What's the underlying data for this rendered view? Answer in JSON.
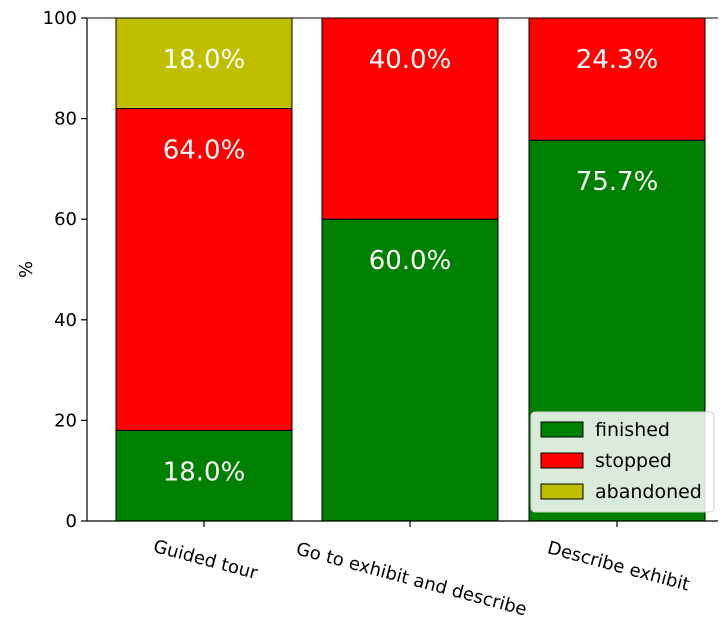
{
  "chart_data": {
    "type": "bar",
    "stacked": true,
    "categories": [
      "Guided tour",
      "Go to exhibit and describe",
      "Describe exhibit"
    ],
    "series": [
      {
        "name": "finished",
        "values": [
          18.0,
          60.0,
          75.7
        ],
        "color": "#008000"
      },
      {
        "name": "stopped",
        "values": [
          64.0,
          40.0,
          24.3
        ],
        "color": "#ff0000"
      },
      {
        "name": "abandoned",
        "values": [
          18.0,
          0.0,
          0.0
        ],
        "color": "#bfbf00"
      }
    ],
    "data_labels": [
      [
        "18.0%",
        "60.0%",
        "75.7%"
      ],
      [
        "64.0%",
        "40.0%",
        "24.3%"
      ],
      [
        "18.0%",
        "",
        ""
      ]
    ],
    "ylabel": "%",
    "ylim": [
      0,
      100
    ],
    "yticks": [
      "0",
      "20",
      "40",
      "60",
      "80",
      "100"
    ],
    "legend_position": "bottom-right",
    "grid": false
  }
}
